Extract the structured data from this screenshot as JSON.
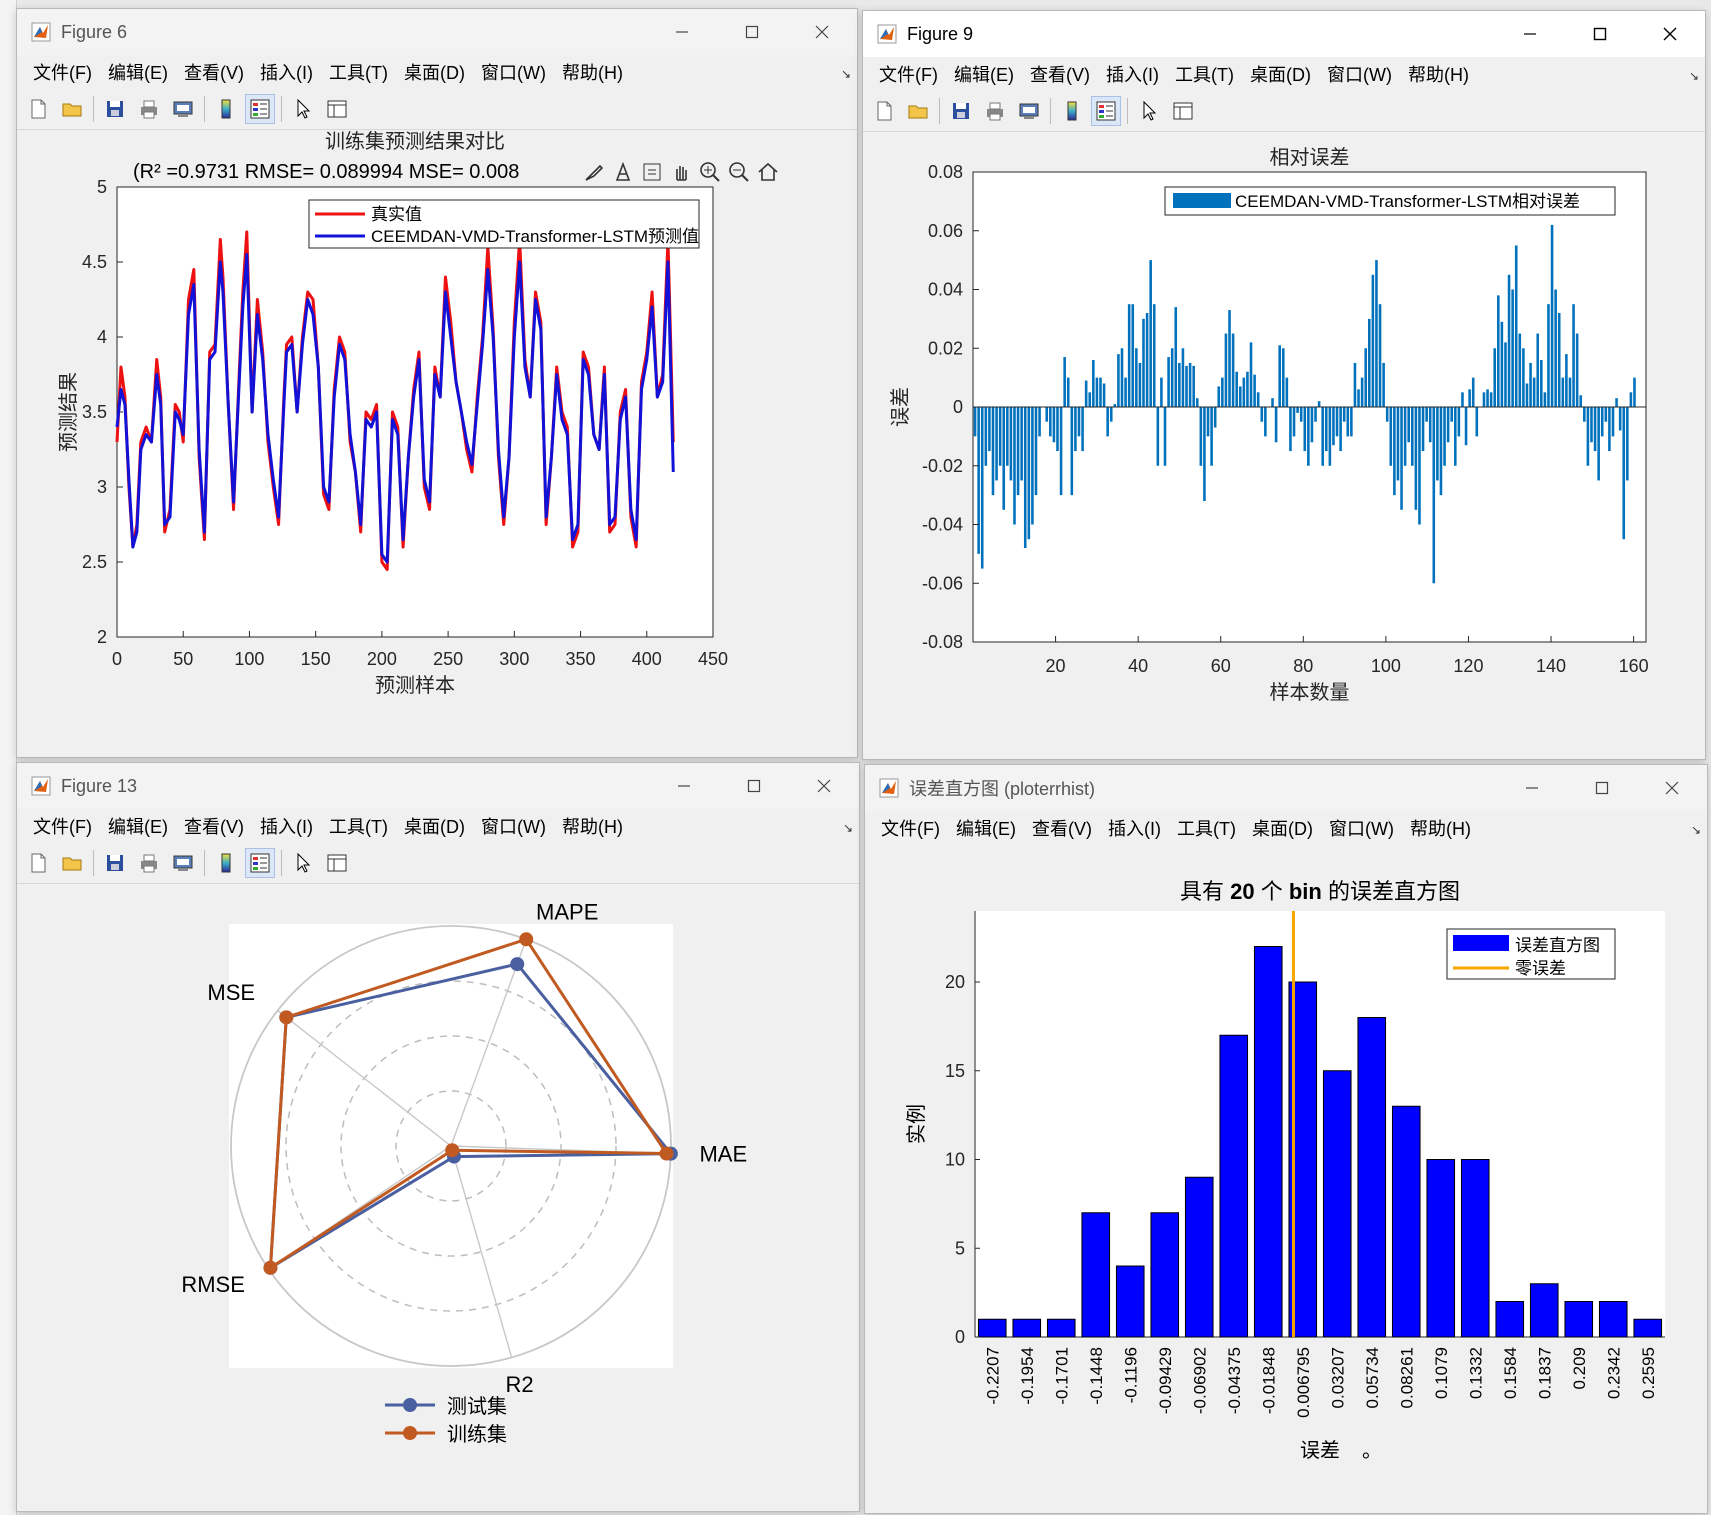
{
  "windows": {
    "fig6": {
      "title": "Figure 6"
    },
    "fig9": {
      "title": "Figure 9"
    },
    "fig13": {
      "title": "Figure 13"
    },
    "hist": {
      "title": "误差直方图 (ploterrhist)"
    }
  },
  "menus": {
    "standard": [
      "文件(F)",
      "编辑(E)",
      "查看(V)",
      "插入(I)",
      "工具(T)",
      "桌面(D)",
      "窗口(W)",
      "帮助(H)"
    ],
    "fig9": [
      "文件(F)",
      "编辑(E)",
      "查看(V)",
      "插入(I)",
      "工具(T)",
      "桌面(D)",
      "窗口(W)",
      "帮助(H)"
    ]
  },
  "toolbar_icons": [
    "new-file-icon",
    "open-folder-icon",
    "save-icon",
    "print-icon",
    "print-preview-icon",
    "colorbar-icon",
    "legend-icon",
    "pointer-icon",
    "property-inspector-icon"
  ],
  "axes_toolbar_icons": [
    "brush-icon",
    "data-tips-icon",
    "restore-view-icon",
    "pan-icon",
    "zoom-in-icon",
    "zoom-out-icon",
    "home-icon"
  ],
  "colors": {
    "red_series": "#ee1111",
    "blue_series": "#1111d8",
    "bar_blue": "#0072bd",
    "hist_blue": "#0000ff",
    "zero_line": "#f5a700",
    "radar_test": "#4a5fa0",
    "radar_train": "#c05a21",
    "watermark": "#e040e0"
  },
  "chart_data": [
    {
      "id": "fig6",
      "type": "line",
      "title": "训练集预测结果对比",
      "subtitle": "(R² =0.9731 RMSE= 0.089994 MSE= 0.008",
      "xlabel": "预测样本",
      "ylabel": "预测结果",
      "xlim": [
        0,
        450
      ],
      "ylim": [
        2,
        5
      ],
      "xticks": [
        0,
        50,
        100,
        150,
        200,
        250,
        300,
        350,
        400,
        450
      ],
      "yticks": [
        2,
        2.5,
        3,
        3.5,
        4,
        4.5,
        5
      ],
      "legend_position": "top-center",
      "series": [
        {
          "name": "真实值",
          "color": "#ee1111",
          "x": [
            0,
            3,
            6,
            9,
            12,
            15,
            18,
            22,
            26,
            30,
            33,
            36,
            40,
            44,
            47,
            50,
            54,
            58,
            62,
            66,
            70,
            74,
            78,
            80,
            84,
            88,
            92,
            95,
            98,
            102,
            106,
            110,
            114,
            118,
            122,
            126,
            128,
            132,
            136,
            140,
            144,
            148,
            152,
            156,
            160,
            164,
            168,
            172,
            176,
            180,
            184,
            188,
            192,
            196,
            200,
            204,
            208,
            212,
            216,
            220,
            224,
            228,
            232,
            236,
            240,
            244,
            248,
            252,
            256,
            260,
            264,
            268,
            272,
            276,
            280,
            284,
            288,
            292,
            296,
            300,
            304,
            308,
            312,
            316,
            320,
            324,
            328,
            332,
            336,
            340,
            344,
            348,
            352,
            356,
            360,
            364,
            368,
            372,
            376,
            380,
            384,
            388,
            392,
            396,
            400,
            404,
            408,
            412,
            416,
            420
          ],
          "y": [
            3.3,
            3.8,
            3.6,
            3.0,
            2.6,
            2.75,
            3.3,
            3.4,
            3.3,
            3.85,
            3.6,
            2.7,
            2.85,
            3.55,
            3.5,
            3.3,
            4.25,
            4.45,
            3.2,
            2.65,
            3.9,
            3.95,
            4.65,
            4.4,
            3.55,
            2.85,
            3.7,
            4.3,
            4.7,
            3.5,
            4.25,
            3.9,
            3.3,
            3.0,
            2.75,
            3.6,
            3.95,
            4.0,
            3.5,
            4.0,
            4.3,
            4.25,
            3.8,
            2.95,
            2.85,
            3.65,
            4.0,
            3.9,
            3.3,
            3.1,
            2.7,
            3.5,
            3.45,
            3.55,
            2.5,
            2.45,
            3.5,
            3.4,
            2.6,
            3.2,
            3.65,
            3.9,
            3.0,
            2.85,
            3.8,
            3.6,
            4.4,
            4.1,
            3.7,
            3.5,
            3.25,
            3.1,
            3.6,
            4.0,
            4.6,
            4.05,
            3.2,
            2.75,
            3.2,
            4.1,
            4.65,
            3.85,
            3.6,
            4.3,
            4.1,
            2.75,
            3.2,
            3.8,
            3.5,
            3.4,
            2.6,
            2.7,
            3.9,
            3.8,
            3.35,
            3.25,
            3.8,
            2.7,
            2.75,
            3.5,
            3.65,
            2.8,
            2.6,
            3.7,
            3.9,
            4.3,
            3.6,
            3.75,
            4.65,
            3.3
          ]
        },
        {
          "name": "CEEMDAN-VMD-Transformer-LSTM预测值",
          "color": "#1111d8",
          "x": [
            0,
            3,
            6,
            9,
            12,
            15,
            18,
            22,
            26,
            30,
            33,
            36,
            40,
            44,
            47,
            50,
            54,
            58,
            62,
            66,
            70,
            74,
            78,
            80,
            84,
            88,
            92,
            95,
            98,
            102,
            106,
            110,
            114,
            118,
            122,
            126,
            128,
            132,
            136,
            140,
            144,
            148,
            152,
            156,
            160,
            164,
            168,
            172,
            176,
            180,
            184,
            188,
            192,
            196,
            200,
            204,
            208,
            212,
            216,
            220,
            224,
            228,
            232,
            236,
            240,
            244,
            248,
            252,
            256,
            260,
            264,
            268,
            272,
            276,
            280,
            284,
            288,
            292,
            296,
            300,
            304,
            308,
            312,
            316,
            320,
            324,
            328,
            332,
            336,
            340,
            344,
            348,
            352,
            356,
            360,
            364,
            368,
            372,
            376,
            380,
            384,
            388,
            392,
            396,
            400,
            404,
            408,
            412,
            416,
            420
          ],
          "y": [
            3.4,
            3.65,
            3.55,
            3.05,
            2.6,
            2.7,
            3.25,
            3.35,
            3.3,
            3.75,
            3.55,
            2.75,
            2.8,
            3.5,
            3.45,
            3.35,
            4.15,
            4.35,
            3.25,
            2.7,
            3.85,
            3.9,
            4.5,
            4.3,
            3.55,
            2.9,
            3.65,
            4.2,
            4.55,
            3.5,
            4.15,
            3.85,
            3.35,
            3.05,
            2.8,
            3.55,
            3.9,
            3.95,
            3.5,
            3.95,
            4.25,
            4.15,
            3.8,
            3.0,
            2.9,
            3.6,
            3.95,
            3.85,
            3.35,
            3.1,
            2.75,
            3.45,
            3.4,
            3.5,
            2.55,
            2.5,
            3.45,
            3.35,
            2.65,
            3.2,
            3.6,
            3.85,
            3.05,
            2.9,
            3.75,
            3.6,
            4.3,
            4.0,
            3.7,
            3.5,
            3.3,
            3.15,
            3.55,
            3.95,
            4.45,
            4.0,
            3.25,
            2.8,
            3.2,
            4.0,
            4.5,
            3.8,
            3.6,
            4.25,
            4.05,
            2.8,
            3.2,
            3.75,
            3.45,
            3.35,
            2.65,
            2.75,
            3.85,
            3.75,
            3.35,
            3.25,
            3.75,
            2.75,
            2.8,
            3.45,
            3.6,
            2.85,
            2.65,
            3.65,
            3.85,
            4.2,
            3.6,
            3.7,
            4.5,
            3.1
          ]
        }
      ]
    },
    {
      "id": "fig9",
      "type": "bar",
      "title": "相对误差",
      "xlabel": "样本数量",
      "ylabel": "误差",
      "xlim": [
        0,
        163
      ],
      "ylim": [
        -0.08,
        0.08
      ],
      "xticks": [
        20,
        40,
        60,
        80,
        100,
        120,
        140,
        160
      ],
      "yticks": [
        -0.08,
        -0.06,
        -0.04,
        -0.02,
        0,
        0.02,
        0.04,
        0.06,
        0.08
      ],
      "legend": "CEEMDAN-VMD-Transformer-LSTM相对误差",
      "legend_position": "top-right",
      "values": [
        -0.01,
        -0.05,
        -0.055,
        -0.02,
        -0.015,
        -0.03,
        -0.025,
        -0.02,
        -0.035,
        -0.02,
        -0.025,
        -0.04,
        -0.03,
        -0.025,
        -0.048,
        -0.045,
        -0.04,
        -0.03,
        -0.01,
        0.0,
        -0.005,
        -0.01,
        -0.012,
        -0.015,
        -0.03,
        0.017,
        0.01,
        -0.03,
        -0.015,
        -0.01,
        -0.015,
        0.009,
        0.005,
        0.016,
        0.01,
        0.01,
        0.008,
        -0.01,
        -0.005,
        0.001,
        0.018,
        0.02,
        0.01,
        0.035,
        0.035,
        0.02,
        0.015,
        0.03,
        0.032,
        0.05,
        0.035,
        -0.02,
        0.01,
        -0.02,
        0.017,
        0.02,
        0.034,
        0.015,
        0.02,
        0.014,
        0.015,
        0.014,
        0.003,
        -0.02,
        -0.032,
        -0.01,
        -0.02,
        -0.007,
        0.007,
        0.01,
        0.025,
        0.033,
        0.025,
        0.012,
        0.007,
        0.01,
        0.012,
        0.022,
        0.011,
        0.005,
        -0.005,
        -0.01,
        0.0,
        0.003,
        -0.012,
        0.021,
        0.02,
        0.01,
        -0.015,
        -0.01,
        -0.002,
        -0.005,
        -0.015,
        -0.02,
        -0.012,
        -0.005,
        0.002,
        -0.02,
        -0.015,
        -0.02,
        -0.013,
        -0.01,
        -0.015,
        -0.005,
        -0.01,
        -0.01,
        0.015,
        0.006,
        0.01,
        0.02,
        0.03,
        0.045,
        0.05,
        0.035,
        0.015,
        -0.005,
        -0.02,
        -0.03,
        -0.025,
        -0.035,
        -0.02,
        -0.012,
        -0.02,
        -0.035,
        -0.04,
        -0.015,
        -0.005,
        -0.012,
        -0.06,
        -0.025,
        -0.03,
        -0.02,
        -0.012,
        -0.005,
        -0.02,
        -0.01,
        0.005,
        -0.013,
        0.006,
        0.01,
        -0.01,
        0.0,
        0.005,
        0.006,
        0.005,
        0.02,
        0.038,
        0.029,
        0.022,
        0.045,
        0.04,
        0.055,
        0.025,
        0.02,
        0.008,
        0.015,
        0.01,
        0.025,
        0.016,
        0.005,
        0.035,
        0.062,
        0.04,
        0.032,
        0.01,
        0.018,
        0.01,
        0.035,
        0.025,
        0.004,
        -0.005,
        -0.02,
        -0.012,
        -0.015,
        -0.025,
        -0.01,
        -0.005,
        -0.015,
        -0.01,
        0.003,
        -0.008,
        -0.045,
        -0.025,
        0.005,
        0.01
      ],
      "x_start": 0.5,
      "x_step": 0.868
    },
    {
      "id": "fig13",
      "type": "radar",
      "axes": [
        "MAE",
        "MAPE",
        "MSE",
        "RMSE",
        "R2"
      ],
      "series": [
        {
          "name": "测试集",
          "color": "#4a5fa0",
          "values": [
            1.0,
            0.88,
            0.95,
            0.99,
            0.05
          ]
        },
        {
          "name": "训练集",
          "color": "#c05a21",
          "values": [
            0.98,
            1.0,
            0.95,
            0.99,
            0.02
          ]
        }
      ],
      "rlim": [
        0,
        1
      ],
      "legend_position": "bottom"
    },
    {
      "id": "hist",
      "type": "bar",
      "title_plain_1": "具有 ",
      "title_bold": "20",
      "title_plain_2": " 个 ",
      "title_bold_2": "bin",
      "title_plain_3": " 的误差直方图",
      "xlabel": "误差",
      "xlabel_suffix": "。",
      "ylabel": "实例",
      "categories": [
        "-0.2207",
        "-0.1954",
        "-0.1701",
        "-0.1448",
        "-0.1196",
        "-0.09429",
        "-0.06902",
        "-0.04375",
        "-0.01848",
        "0.006795",
        "0.03207",
        "0.05734",
        "0.08261",
        "0.1079",
        "0.1332",
        "0.1584",
        "0.1837",
        "0.209",
        "0.2342",
        "0.2595"
      ],
      "values": [
        1,
        1,
        1,
        7,
        4,
        7,
        9,
        17,
        22,
        20,
        15,
        18,
        13,
        10,
        10,
        2,
        3,
        2,
        2,
        1
      ],
      "ylim": [
        0,
        24
      ],
      "yticks": [
        0,
        5,
        10,
        15,
        20
      ],
      "zero_error_position": 0.0,
      "legend": [
        "误差直方图",
        "零误差"
      ],
      "legend_position": "top-right"
    }
  ]
}
